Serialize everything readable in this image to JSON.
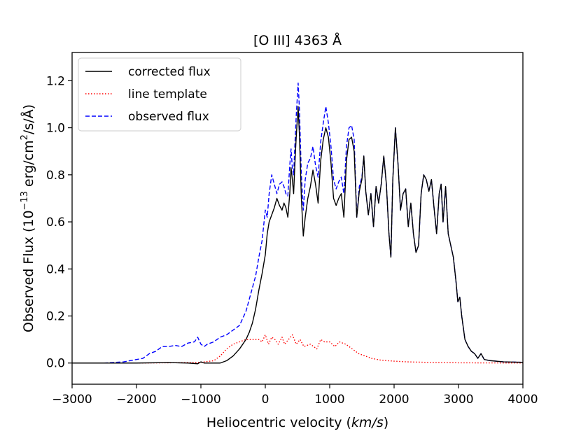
{
  "chart_data": {
    "type": "line",
    "title": "[O III] 4363 Å",
    "xlabel_prefix": "Heliocentric velocity (",
    "xlabel_unit": "km/s",
    "xlabel_suffix": ")",
    "ylabel_prefix": "Observed Flux (10",
    "ylabel_exp": "−13",
    "ylabel_mid": " erg/cm",
    "ylabel_sq": "2",
    "ylabel_suffix": "/s/Å)",
    "xlim": [
      -3000,
      4000
    ],
    "ylim": [
      -0.09,
      1.32
    ],
    "xticks": [
      -3000,
      -2000,
      -1000,
      0,
      1000,
      2000,
      3000,
      4000
    ],
    "xtick_labels": [
      "−3000",
      "−2000",
      "−1000",
      "0",
      "1000",
      "2000",
      "3000",
      "4000"
    ],
    "yticks": [
      0.0,
      0.2,
      0.4,
      0.6,
      0.8,
      1.0,
      1.2
    ],
    "ytick_labels": [
      "0.0",
      "0.2",
      "0.4",
      "0.6",
      "0.8",
      "1.0",
      "1.2"
    ],
    "grid": false,
    "legend_position": "top-left",
    "series": [
      {
        "name": "corrected flux",
        "color": "#000000",
        "dash": "solid",
        "points": [
          [
            -3000,
            0.0
          ],
          [
            -2500,
            0.0
          ],
          [
            -2000,
            0.0
          ],
          [
            -1500,
            0.002
          ],
          [
            -1200,
            0.0
          ],
          [
            -1050,
            -0.003
          ],
          [
            -1000,
            0.005
          ],
          [
            -950,
            0.0
          ],
          [
            -800,
            0.0
          ],
          [
            -700,
            0.0
          ],
          [
            -600,
            0.01
          ],
          [
            -500,
            0.03
          ],
          [
            -400,
            0.06
          ],
          [
            -300,
            0.1
          ],
          [
            -250,
            0.13
          ],
          [
            -200,
            0.17
          ],
          [
            -150,
            0.23
          ],
          [
            -100,
            0.31
          ],
          [
            -50,
            0.38
          ],
          [
            0,
            0.46
          ],
          [
            30,
            0.55
          ],
          [
            60,
            0.6
          ],
          [
            100,
            0.63
          ],
          [
            140,
            0.66
          ],
          [
            180,
            0.7
          ],
          [
            220,
            0.67
          ],
          [
            260,
            0.65
          ],
          [
            290,
            0.68
          ],
          [
            320,
            0.66
          ],
          [
            350,
            0.62
          ],
          [
            380,
            0.72
          ],
          [
            400,
            0.83
          ],
          [
            420,
            0.78
          ],
          [
            440,
            0.72
          ],
          [
            460,
            0.85
          ],
          [
            480,
            0.96
          ],
          [
            510,
            1.09
          ],
          [
            530,
            0.97
          ],
          [
            560,
            0.7
          ],
          [
            590,
            0.54
          ],
          [
            620,
            0.62
          ],
          [
            660,
            0.7
          ],
          [
            700,
            0.75
          ],
          [
            740,
            0.82
          ],
          [
            780,
            0.76
          ],
          [
            820,
            0.68
          ],
          [
            860,
            0.86
          ],
          [
            900,
            0.95
          ],
          [
            940,
            1.0
          ],
          [
            980,
            0.96
          ],
          [
            1020,
            0.85
          ],
          [
            1060,
            0.7
          ],
          [
            1100,
            0.67
          ],
          [
            1140,
            0.7
          ],
          [
            1180,
            0.72
          ],
          [
            1220,
            0.62
          ],
          [
            1260,
            0.86
          ],
          [
            1300,
            0.95
          ],
          [
            1340,
            0.96
          ],
          [
            1380,
            0.9
          ],
          [
            1420,
            0.62
          ],
          [
            1460,
            0.73
          ],
          [
            1500,
            0.78
          ],
          [
            1530,
            0.88
          ],
          [
            1560,
            0.73
          ],
          [
            1600,
            0.63
          ],
          [
            1640,
            0.72
          ],
          [
            1680,
            0.58
          ],
          [
            1720,
            0.75
          ],
          [
            1760,
            0.68
          ],
          [
            1800,
            0.76
          ],
          [
            1840,
            0.88
          ],
          [
            1880,
            0.76
          ],
          [
            1920,
            0.55
          ],
          [
            1950,
            0.45
          ],
          [
            1980,
            0.78
          ],
          [
            2020,
            1.0
          ],
          [
            2060,
            0.85
          ],
          [
            2100,
            0.65
          ],
          [
            2140,
            0.72
          ],
          [
            2180,
            0.74
          ],
          [
            2220,
            0.58
          ],
          [
            2260,
            0.68
          ],
          [
            2300,
            0.55
          ],
          [
            2340,
            0.47
          ],
          [
            2380,
            0.5
          ],
          [
            2420,
            0.72
          ],
          [
            2460,
            0.8
          ],
          [
            2500,
            0.78
          ],
          [
            2540,
            0.73
          ],
          [
            2580,
            0.78
          ],
          [
            2620,
            0.66
          ],
          [
            2660,
            0.55
          ],
          [
            2700,
            0.72
          ],
          [
            2730,
            0.76
          ],
          [
            2760,
            0.6
          ],
          [
            2800,
            0.75
          ],
          [
            2840,
            0.55
          ],
          [
            2880,
            0.5
          ],
          [
            2920,
            0.45
          ],
          [
            2960,
            0.35
          ],
          [
            2990,
            0.26
          ],
          [
            3020,
            0.28
          ],
          [
            3050,
            0.2
          ],
          [
            3100,
            0.1
          ],
          [
            3150,
            0.07
          ],
          [
            3200,
            0.05
          ],
          [
            3250,
            0.04
          ],
          [
            3300,
            0.02
          ],
          [
            3350,
            0.04
          ],
          [
            3400,
            0.015
          ],
          [
            3500,
            0.01
          ],
          [
            3700,
            0.005
          ],
          [
            4000,
            0.003
          ]
        ]
      },
      {
        "name": "line template",
        "color": "#ff0000",
        "dash": "dotted",
        "points": [
          [
            -3000,
            0.0
          ],
          [
            -2000,
            0.0
          ],
          [
            -1500,
            0.001
          ],
          [
            -1000,
            0.003
          ],
          [
            -800,
            0.01
          ],
          [
            -700,
            0.03
          ],
          [
            -600,
            0.06
          ],
          [
            -500,
            0.08
          ],
          [
            -400,
            0.09
          ],
          [
            -300,
            0.1
          ],
          [
            -200,
            0.1
          ],
          [
            -100,
            0.1
          ],
          [
            -50,
            0.09
          ],
          [
            0,
            0.12
          ],
          [
            50,
            0.08
          ],
          [
            100,
            0.11
          ],
          [
            150,
            0.1
          ],
          [
            200,
            0.08
          ],
          [
            260,
            0.11
          ],
          [
            300,
            0.08
          ],
          [
            360,
            0.1
          ],
          [
            420,
            0.12
          ],
          [
            480,
            0.08
          ],
          [
            540,
            0.1
          ],
          [
            600,
            0.07
          ],
          [
            700,
            0.08
          ],
          [
            800,
            0.06
          ],
          [
            860,
            0.1
          ],
          [
            920,
            0.09
          ],
          [
            1000,
            0.09
          ],
          [
            1080,
            0.07
          ],
          [
            1150,
            0.09
          ],
          [
            1250,
            0.08
          ],
          [
            1350,
            0.06
          ],
          [
            1450,
            0.04
          ],
          [
            1550,
            0.03
          ],
          [
            1650,
            0.02
          ],
          [
            1800,
            0.012
          ],
          [
            2000,
            0.008
          ],
          [
            2200,
            0.005
          ],
          [
            2500,
            0.003
          ],
          [
            3000,
            0.001
          ],
          [
            4000,
            0.0
          ]
        ]
      },
      {
        "name": "observed flux",
        "color": "#0000ff",
        "dash": "dashed",
        "points": [
          [
            -3000,
            0.0
          ],
          [
            -2500,
            0.0
          ],
          [
            -2200,
            0.005
          ],
          [
            -2000,
            0.015
          ],
          [
            -1900,
            0.02
          ],
          [
            -1800,
            0.04
          ],
          [
            -1700,
            0.05
          ],
          [
            -1600,
            0.07
          ],
          [
            -1500,
            0.07
          ],
          [
            -1400,
            0.075
          ],
          [
            -1300,
            0.07
          ],
          [
            -1200,
            0.085
          ],
          [
            -1100,
            0.09
          ],
          [
            -1050,
            0.11
          ],
          [
            -1000,
            0.08
          ],
          [
            -950,
            0.07
          ],
          [
            -900,
            0.08
          ],
          [
            -800,
            0.09
          ],
          [
            -700,
            0.11
          ],
          [
            -600,
            0.12
          ],
          [
            -500,
            0.14
          ],
          [
            -400,
            0.16
          ],
          [
            -300,
            0.22
          ],
          [
            -250,
            0.27
          ],
          [
            -200,
            0.32
          ],
          [
            -150,
            0.37
          ],
          [
            -100,
            0.45
          ],
          [
            -50,
            0.52
          ],
          [
            0,
            0.65
          ],
          [
            30,
            0.62
          ],
          [
            60,
            0.72
          ],
          [
            100,
            0.8
          ],
          [
            140,
            0.76
          ],
          [
            180,
            0.72
          ],
          [
            220,
            0.76
          ],
          [
            260,
            0.77
          ],
          [
            290,
            0.75
          ],
          [
            320,
            0.72
          ],
          [
            350,
            0.71
          ],
          [
            380,
            0.84
          ],
          [
            400,
            0.91
          ],
          [
            420,
            0.83
          ],
          [
            440,
            0.8
          ],
          [
            460,
            0.93
          ],
          [
            480,
            1.05
          ],
          [
            510,
            1.19
          ],
          [
            530,
            1.08
          ],
          [
            560,
            0.8
          ],
          [
            590,
            0.65
          ],
          [
            620,
            0.78
          ],
          [
            660,
            0.85
          ],
          [
            700,
            0.87
          ],
          [
            740,
            0.92
          ],
          [
            780,
            0.84
          ],
          [
            820,
            0.79
          ],
          [
            860,
            0.94
          ],
          [
            900,
            1.02
          ],
          [
            940,
            1.09
          ],
          [
            980,
            1.02
          ],
          [
            1020,
            0.92
          ],
          [
            1060,
            0.78
          ],
          [
            1100,
            0.74
          ],
          [
            1140,
            0.77
          ],
          [
            1180,
            0.79
          ],
          [
            1220,
            0.72
          ],
          [
            1260,
            0.92
          ],
          [
            1300,
            1.0
          ],
          [
            1340,
            1.01
          ],
          [
            1380,
            0.95
          ],
          [
            1420,
            0.62
          ],
          [
            1460,
            0.75
          ],
          [
            1500,
            0.79
          ],
          [
            1530,
            0.88
          ],
          [
            1560,
            0.73
          ],
          [
            1600,
            0.63
          ],
          [
            1640,
            0.72
          ],
          [
            1680,
            0.58
          ],
          [
            1720,
            0.75
          ],
          [
            1760,
            0.68
          ],
          [
            1800,
            0.76
          ],
          [
            1840,
            0.88
          ],
          [
            1880,
            0.76
          ],
          [
            1920,
            0.55
          ],
          [
            1950,
            0.45
          ],
          [
            1980,
            0.78
          ],
          [
            2020,
            1.0
          ],
          [
            2060,
            0.85
          ],
          [
            2100,
            0.65
          ],
          [
            2140,
            0.72
          ],
          [
            2180,
            0.74
          ],
          [
            2220,
            0.58
          ],
          [
            2260,
            0.68
          ],
          [
            2300,
            0.55
          ],
          [
            2340,
            0.47
          ],
          [
            2380,
            0.5
          ],
          [
            2420,
            0.72
          ],
          [
            2460,
            0.8
          ],
          [
            2500,
            0.78
          ],
          [
            2540,
            0.73
          ],
          [
            2580,
            0.78
          ],
          [
            2620,
            0.66
          ],
          [
            2660,
            0.55
          ],
          [
            2700,
            0.72
          ],
          [
            2730,
            0.76
          ],
          [
            2760,
            0.6
          ],
          [
            2800,
            0.75
          ],
          [
            2840,
            0.55
          ],
          [
            2880,
            0.5
          ],
          [
            2920,
            0.45
          ],
          [
            2960,
            0.35
          ],
          [
            2990,
            0.26
          ],
          [
            3020,
            0.28
          ],
          [
            3050,
            0.2
          ],
          [
            3100,
            0.1
          ],
          [
            3150,
            0.07
          ],
          [
            3200,
            0.05
          ],
          [
            3250,
            0.04
          ],
          [
            3300,
            0.02
          ],
          [
            3350,
            0.04
          ],
          [
            3400,
            0.015
          ],
          [
            3500,
            0.01
          ],
          [
            3700,
            0.005
          ],
          [
            4000,
            0.003
          ]
        ]
      }
    ]
  }
}
